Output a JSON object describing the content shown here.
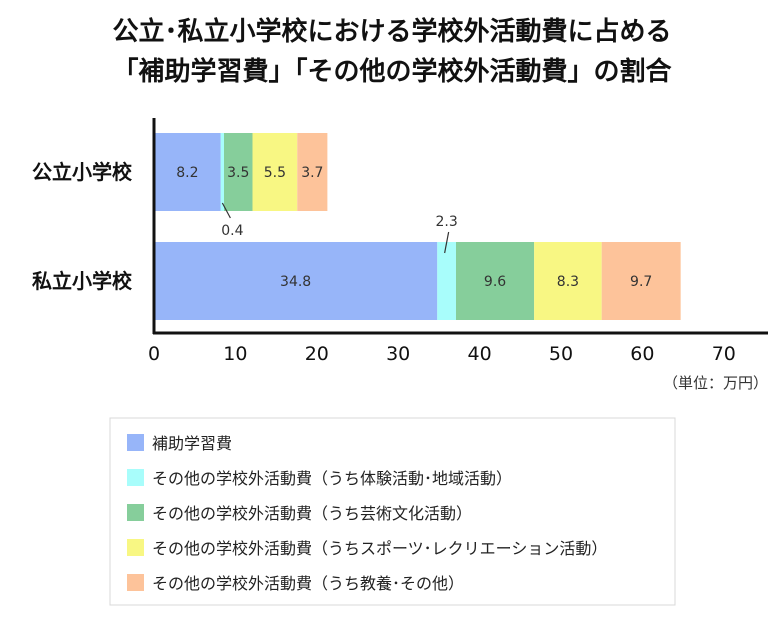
{
  "chart_data": {
    "type": "bar",
    "orientation": "horizontal",
    "stacked": true,
    "title": "公立･私立小学校における学校外活動費に占める",
    "subtitle": "「補助学習費」「その他の学校外活動費」の割合",
    "unit": "（単位：万円）",
    "categories": [
      "公立小学校",
      "私立小学校"
    ],
    "series": [
      {
        "name": "補助学習費",
        "color": "#97b5f9",
        "values": [
          8.2,
          34.8
        ],
        "labels": [
          "8.2",
          "34.8"
        ]
      },
      {
        "name": "その他の学校外活動費（うち体験活動･地域活動）",
        "color": "#a8fdfb",
        "values": [
          0.4,
          2.3
        ],
        "labels": [
          "0.4",
          "2.3"
        ]
      },
      {
        "name": "その他の学校外活動費（うち芸術文化活動）",
        "color": "#86ce9b",
        "values": [
          3.5,
          9.6
        ],
        "labels": [
          "3.5",
          "9.6"
        ]
      },
      {
        "name": "その他の学校外活動費（うちスポーツ･レクリエーション活動）",
        "color": "#f8f783",
        "values": [
          5.5,
          8.3
        ],
        "labels": [
          "5.5",
          "8.3"
        ]
      },
      {
        "name": "その他の学校外活動費（うち教養･その他）",
        "color": "#fdc39a",
        "values": [
          3.7,
          9.7
        ],
        "labels": [
          "3.7",
          "9.7"
        ]
      }
    ],
    "xlim": [
      0,
      75
    ],
    "xticks": [
      0,
      10,
      20,
      30,
      40,
      50,
      60,
      70
    ],
    "grid": false,
    "legend": "bottom"
  }
}
